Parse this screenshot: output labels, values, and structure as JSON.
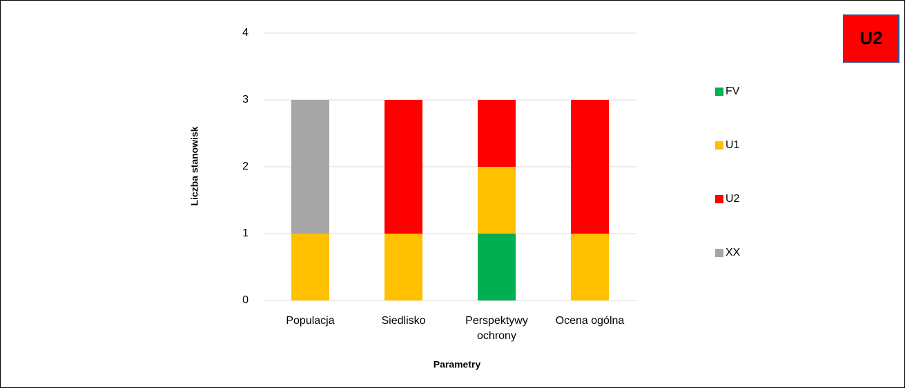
{
  "chart_data": {
    "type": "stacked_bar",
    "y_label": "Liczba stanowisk",
    "x_label": "Parametry",
    "badge": "U2",
    "categories": [
      "Populacja",
      "Siedlisko",
      "Perspektywy ochrony",
      "Ocena ogólna"
    ],
    "series": [
      {
        "name": "FV",
        "color": "#00b050",
        "values": [
          0,
          0,
          1,
          0
        ]
      },
      {
        "name": "U1",
        "color": "#ffc000",
        "values": [
          1,
          1,
          1,
          1
        ]
      },
      {
        "name": "U2",
        "color": "#ff0000",
        "values": [
          0,
          2,
          1,
          2
        ]
      },
      {
        "name": "XX",
        "color": "#a6a6a6",
        "values": [
          2,
          0,
          0,
          0
        ]
      }
    ],
    "ylim": [
      0,
      4
    ],
    "yticks": [
      0,
      1,
      2,
      3,
      4
    ],
    "grid": true,
    "legend": "right"
  }
}
